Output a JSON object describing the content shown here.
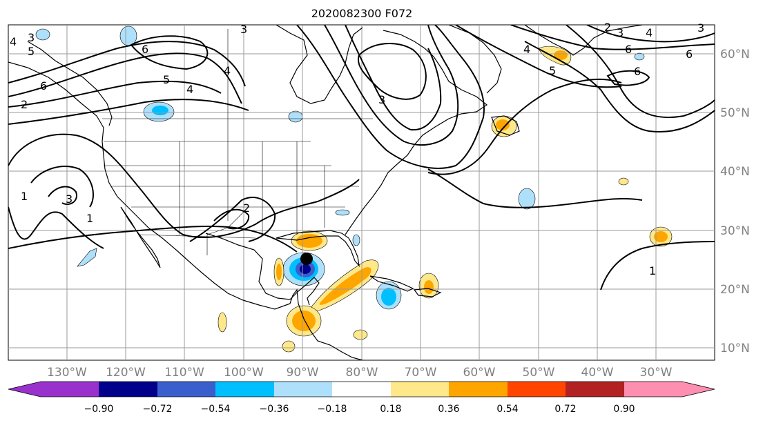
{
  "title": "2020082300 F072",
  "lon_labels": [
    "130°W",
    "120°W",
    "110°W",
    "100°W",
    "90°W",
    "80°W",
    "70°W",
    "60°W",
    "50°W",
    "40°W",
    "30°W"
  ],
  "lat_labels": [
    "60°N",
    "50°N",
    "40°N",
    "30°N",
    "20°N",
    "10°N"
  ],
  "colorbar": {
    "tick_labels": [
      "−0.90",
      "−0.72",
      "−0.54",
      "−0.36",
      "−0.18",
      "0.18",
      "0.36",
      "0.54",
      "0.72",
      "0.90"
    ],
    "colors": [
      "#9932cc",
      "#00008b",
      "#3a5fcd",
      "#00bfff",
      "#aee0fb",
      "#ffffff",
      "#ffe88a",
      "#ffa500",
      "#ff4500",
      "#b22222",
      "#ff8fb1"
    ]
  },
  "contour_labels": {
    "c1": "3",
    "c2": "4",
    "c3": "5",
    "c4": "6",
    "c5": "6",
    "c6": "5",
    "c7": "4",
    "c8": "3",
    "c9": "2",
    "c10": "1",
    "c11": "1",
    "c12": "3",
    "c13": "2",
    "c14": "4",
    "c15": "3",
    "c16": "2",
    "c17": "3",
    "c18": "4",
    "c19": "6",
    "c20": "6",
    "c21": "6",
    "c22": "4",
    "c23": "5",
    "c24": "1",
    "c25": "3"
  },
  "marker": "storm-center"
}
